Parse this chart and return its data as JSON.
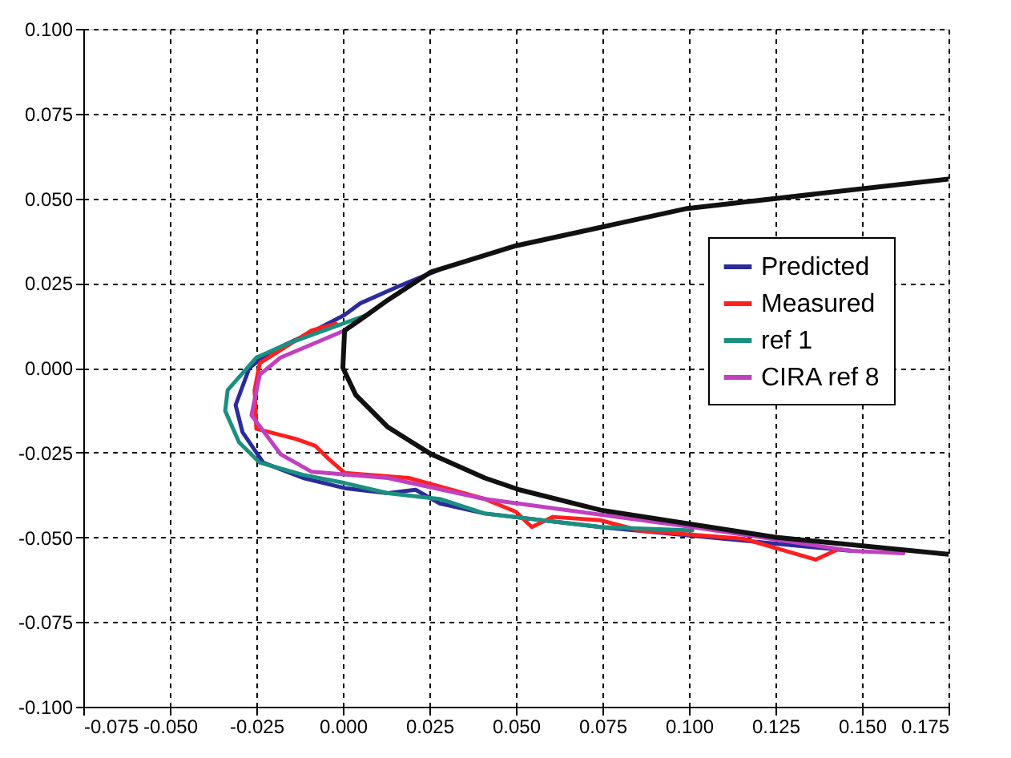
{
  "chart_data": {
    "type": "line",
    "xlim": [
      -0.075,
      0.175
    ],
    "ylim": [
      -0.1,
      0.1
    ],
    "xticks": [
      {
        "value": -0.075,
        "label": "-0.075"
      },
      {
        "value": -0.05,
        "label": "-0.050"
      },
      {
        "value": -0.025,
        "label": "-0.025"
      },
      {
        "value": 0,
        "label": "0.000"
      },
      {
        "value": 0.025,
        "label": "0.025"
      },
      {
        "value": 0.05,
        "label": "0.050"
      },
      {
        "value": 0.075,
        "label": "0.075"
      },
      {
        "value": 0.1,
        "label": "0.100"
      },
      {
        "value": 0.125,
        "label": "0.125"
      },
      {
        "value": 0.15,
        "label": "0.150"
      },
      {
        "value": 0.175,
        "label": "0.175"
      }
    ],
    "yticks": [
      {
        "value": -0.1,
        "label": "-0.100"
      },
      {
        "value": -0.075,
        "label": "-0.075"
      },
      {
        "value": -0.05,
        "label": "-0.050"
      },
      {
        "value": -0.025,
        "label": "-0.025"
      },
      {
        "value": 0,
        "label": "0.000"
      },
      {
        "value": 0.025,
        "label": "0.025"
      },
      {
        "value": 0.05,
        "label": "0.050"
      },
      {
        "value": 0.075,
        "label": "0.075"
      },
      {
        "value": 0.1,
        "label": "0.100"
      }
    ],
    "grid": true,
    "legend": "right",
    "line_style": "solid",
    "marker": "none",
    "series": [
      {
        "name": "Predicted",
        "color": "#2b2b9c",
        "x": [
          0.028,
          0.016,
          0.005,
          0.0005,
          -0.01,
          -0.021,
          -0.027,
          -0.031,
          -0.029,
          -0.023,
          -0.0115,
          0.0005,
          0.013,
          0.021,
          0.028,
          0.041,
          0.0745,
          0.116,
          0.147
        ],
        "values": [
          0.029,
          0.024,
          0.019,
          0.0156,
          0.01,
          0.0047,
          0,
          -0.011,
          -0.019,
          -0.028,
          -0.0325,
          -0.0355,
          -0.037,
          -0.036,
          -0.04,
          -0.043,
          -0.047,
          -0.051,
          -0.054
        ]
      },
      {
        "name": "Measured",
        "color": "#ff2020",
        "x": [
          -0.002,
          -0.009,
          -0.024,
          -0.0255,
          -0.025,
          -0.0135,
          -0.008,
          -0.004,
          0.0005,
          0.019,
          0.028,
          0.041,
          0.05,
          0.0546,
          0.0607,
          0.0745,
          0.0856,
          0.116,
          0.1366,
          0.1426
        ],
        "values": [
          0.013,
          0.011,
          0.0014,
          -0.0066,
          -0.018,
          -0.021,
          -0.023,
          -0.027,
          -0.031,
          -0.0325,
          -0.035,
          -0.0387,
          -0.0425,
          -0.047,
          -0.044,
          -0.045,
          -0.048,
          -0.0505,
          -0.0566,
          -0.0538
        ]
      },
      {
        "name": "ref 1",
        "color": "#1a9080",
        "x": [
          0.007,
          -0.015,
          -0.025,
          -0.0333,
          -0.034,
          -0.03,
          -0.024,
          -0.0115,
          0.0005,
          0.013,
          0.028,
          0.041,
          0.0745,
          0.101
        ],
        "values": [
          0.0156,
          0.0075,
          0.003,
          -0.0066,
          -0.0127,
          -0.022,
          -0.028,
          -0.0316,
          -0.034,
          -0.037,
          -0.0387,
          -0.043,
          -0.047,
          -0.048
        ]
      },
      {
        "name": "CIRA ref 8",
        "color": "#c040c0",
        "x": [
          0.005,
          0.0005,
          -0.018,
          -0.024,
          -0.0264,
          -0.018,
          -0.009,
          0.013,
          0.041,
          0.101,
          0.147,
          0.162
        ],
        "values": [
          0.014,
          0.011,
          0.003,
          -0.002,
          -0.014,
          -0.0255,
          -0.0307,
          -0.0325,
          -0.0387,
          -0.047,
          -0.054,
          -0.0547
        ]
      },
      {
        "color": "#111111",
        "x": [
          0.175,
          0.0995,
          0.05,
          0.0255,
          0.013,
          0.007,
          0.0005,
          0,
          0.0037,
          0.013,
          0.0255,
          0.041,
          0.051,
          0.0745,
          0.125,
          0.175
        ],
        "values": [
          0.0557,
          0.047,
          0.036,
          0.0283,
          0.02,
          0.0156,
          0.011,
          0,
          -0.008,
          -0.0175,
          -0.0255,
          -0.0325,
          -0.036,
          -0.042,
          -0.05,
          -0.055
        ]
      }
    ]
  }
}
